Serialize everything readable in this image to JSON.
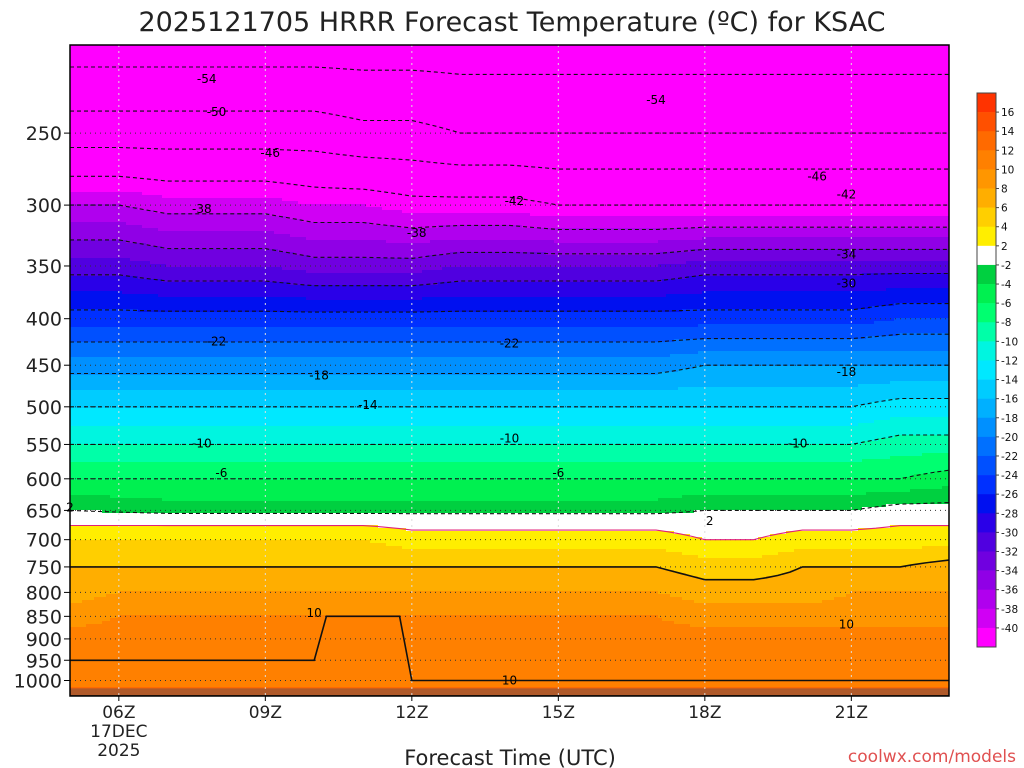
{
  "title": "2025121705 HRRR Forecast Temperature (ºC) for KSAC",
  "xlabel": "Forecast Time (UTC)",
  "watermark": "coolwx.com/models",
  "chart_data": {
    "type": "heatmap",
    "title": "2025121705 HRRR Forecast Temperature (ºC) for KSAC",
    "xlabel": "Forecast Time (UTC)",
    "ylabel": "",
    "y_scale": "log (pressure, hPa)",
    "y_range": [
      1040,
      200
    ],
    "x_range_hours_utc": [
      5,
      23
    ],
    "x_ticks": [
      {
        "label": "06Z",
        "sub1": "17DEC",
        "sub2": "2025",
        "hour": 6
      },
      {
        "label": "09Z",
        "hour": 9
      },
      {
        "label": "12Z",
        "hour": 12
      },
      {
        "label": "15Z",
        "hour": 15
      },
      {
        "label": "18Z",
        "hour": 18
      },
      {
        "label": "21Z",
        "hour": 21
      }
    ],
    "y_ticks": [
      250,
      300,
      350,
      400,
      450,
      500,
      550,
      600,
      650,
      700,
      750,
      800,
      850,
      900,
      950,
      1000
    ],
    "colorbar": {
      "labels": [
        "16",
        "14",
        "12",
        "10",
        "8",
        "6",
        "4",
        "2",
        "-2",
        "-4",
        "-6",
        "-8",
        "-10",
        "-12",
        "-14",
        "-16",
        "-18",
        "-20",
        "-22",
        "-24",
        "-26",
        "-28",
        "-30",
        "-32",
        "-34",
        "-36",
        "-38",
        "-40"
      ],
      "colors": [
        "#ff3300",
        "#ff5000",
        "#ff6a00",
        "#ff8000",
        "#ff9600",
        "#ffae00",
        "#ffcf00",
        "#ffee00",
        "#ffffff",
        "#00d040",
        "#00f050",
        "#00ff70",
        "#00ffa8",
        "#00f5e0",
        "#00e8ff",
        "#00ccff",
        "#00b0ff",
        "#0090ff",
        "#0070ff",
        "#0050ff",
        "#0030ff",
        "#0010f0",
        "#2a00e8",
        "#5000e0",
        "#7000e0",
        "#9000e6",
        "#b000ee",
        "#d000f4",
        "#ff00ff"
      ]
    },
    "levels": [
      {
        "p": 1040,
        "t": [
          14,
          14,
          14,
          14,
          14,
          14,
          14,
          14,
          14,
          14,
          14,
          14,
          14,
          14,
          14,
          14,
          14,
          14,
          14
        ]
      },
      {
        "p": 1000,
        "t": [
          11,
          11,
          11,
          11,
          11,
          11,
          11,
          10,
          10,
          10,
          10,
          10,
          10,
          10,
          10,
          10,
          10,
          10,
          10
        ]
      },
      {
        "p": 950,
        "t": [
          10,
          10,
          10,
          10,
          10,
          10,
          11,
          11,
          11,
          11,
          11,
          11,
          11,
          11,
          11,
          11,
          11,
          11,
          11
        ]
      },
      {
        "p": 900,
        "t": [
          11,
          11,
          10,
          10,
          10,
          11,
          11,
          11,
          11,
          11,
          11,
          11,
          11,
          11,
          11,
          11,
          11,
          11,
          11
        ]
      },
      {
        "p": 850,
        "t": [
          9,
          10,
          10,
          10,
          10,
          10,
          10,
          10,
          10,
          10,
          10,
          10,
          10,
          9,
          9,
          9,
          9,
          9,
          9
        ]
      },
      {
        "p": 800,
        "t": [
          7,
          8,
          8,
          8,
          8,
          8,
          8,
          8,
          8,
          8,
          8,
          8,
          8,
          7,
          7,
          7,
          8,
          8,
          8
        ]
      },
      {
        "p": 750,
        "t": [
          6,
          6,
          6,
          6,
          6,
          6,
          6,
          6,
          6,
          6,
          6,
          6,
          6,
          5,
          5,
          6,
          6,
          6,
          7
        ]
      },
      {
        "p": 700,
        "t": [
          4,
          4,
          4,
          4,
          4,
          4,
          4,
          3,
          3,
          3,
          3,
          3,
          3,
          2,
          2,
          3,
          3,
          3,
          3
        ]
      },
      {
        "p": 675,
        "t": [
          2,
          2,
          2,
          2,
          2,
          2,
          2,
          1.5,
          1.5,
          1.5,
          1.5,
          1.5,
          1.5,
          1,
          1,
          1.5,
          1.5,
          2,
          2
        ]
      },
      {
        "p": 650,
        "t": [
          -2,
          -2.5,
          -3,
          -3,
          -3,
          -3,
          -3,
          -3,
          -3,
          -3,
          -3,
          -3,
          -3,
          -2,
          -2,
          -2,
          -2,
          -1,
          -1
        ]
      },
      {
        "p": 600,
        "t": [
          -6,
          -6,
          -6,
          -6,
          -6,
          -6,
          -6,
          -6,
          -6,
          -6,
          -6,
          -6,
          -6,
          -6,
          -6,
          -6,
          -6,
          -6,
          -5
        ]
      },
      {
        "p": 550,
        "t": [
          -10,
          -10,
          -10,
          -10,
          -10,
          -10,
          -10,
          -10,
          -10,
          -10,
          -10,
          -10,
          -10,
          -10,
          -10,
          -10,
          -10,
          -9,
          -9
        ]
      },
      {
        "p": 500,
        "t": [
          -14,
          -14,
          -14,
          -14,
          -14,
          -14,
          -14,
          -14,
          -14,
          -14,
          -14,
          -14,
          -14,
          -14,
          -14,
          -14,
          -14,
          -13,
          -13
        ]
      },
      {
        "p": 450,
        "t": [
          -19,
          -19,
          -19,
          -19,
          -19,
          -19,
          -19,
          -19,
          -19,
          -19,
          -19,
          -19,
          -19,
          -18,
          -18,
          -18,
          -18,
          -18,
          -18
        ]
      },
      {
        "p": 400,
        "t": [
          -25,
          -25,
          -25,
          -25,
          -25,
          -25,
          -25,
          -25,
          -25,
          -25,
          -25,
          -25,
          -25,
          -25,
          -25,
          -25,
          -25,
          -24,
          -24
        ]
      },
      {
        "p": 350,
        "t": [
          -31,
          -31,
          -32,
          -32,
          -32,
          -33,
          -33,
          -33,
          -32,
          -32,
          -32,
          -32,
          -32,
          -31,
          -31,
          -31,
          -31,
          -31,
          -31
        ]
      },
      {
        "p": 300,
        "t": [
          -38,
          -38,
          -39,
          -39,
          -39,
          -40,
          -40,
          -41,
          -41,
          -41,
          -42,
          -42,
          -42,
          -42,
          -42,
          -42,
          -42,
          -42,
          -42
        ]
      },
      {
        "p": 250,
        "t": [
          -48,
          -48,
          -48,
          -48,
          -48,
          -48,
          -49,
          -49,
          -50,
          -50,
          -50,
          -50,
          -50,
          -50,
          -50,
          -50,
          -50,
          -50,
          -50
        ]
      },
      {
        "p": 200,
        "t": [
          -56,
          -56,
          -56,
          -56,
          -56,
          -56,
          -56,
          -56,
          -56,
          -56,
          -56,
          -56,
          -56,
          -56,
          -56,
          -56,
          -56,
          -56,
          -56
        ]
      }
    ],
    "contour_labels": [
      {
        "text": "-54",
        "hour": 7.8,
        "p": 218
      },
      {
        "text": "-50",
        "hour": 8.0,
        "p": 237
      },
      {
        "text": "-46",
        "hour": 9.1,
        "p": 263
      },
      {
        "text": "-38",
        "hour": 7.7,
        "p": 303
      },
      {
        "text": "-42",
        "hour": 14.1,
        "p": 297
      },
      {
        "text": "-38",
        "hour": 12.1,
        "p": 322
      },
      {
        "text": "-54",
        "hour": 17.0,
        "p": 230
      },
      {
        "text": "-46",
        "hour": 20.3,
        "p": 279
      },
      {
        "text": "-42",
        "hour": 20.9,
        "p": 292
      },
      {
        "text": "-34",
        "hour": 20.9,
        "p": 340
      },
      {
        "text": "-30",
        "hour": 20.9,
        "p": 366
      },
      {
        "text": "-22",
        "hour": 8.0,
        "p": 424
      },
      {
        "text": "-22",
        "hour": 14.0,
        "p": 426
      },
      {
        "text": "-18",
        "hour": 10.1,
        "p": 462
      },
      {
        "text": "-18",
        "hour": 20.9,
        "p": 458
      },
      {
        "text": "-14",
        "hour": 11.1,
        "p": 498
      },
      {
        "text": "-10",
        "hour": 7.7,
        "p": 549
      },
      {
        "text": "-10",
        "hour": 14.0,
        "p": 542
      },
      {
        "text": "-10",
        "hour": 19.9,
        "p": 549
      },
      {
        "text": "-6",
        "hour": 8.1,
        "p": 591
      },
      {
        "text": "-6",
        "hour": 15.0,
        "p": 591
      },
      {
        "text": "2",
        "hour": 5.0,
        "p": 645
      },
      {
        "text": "2",
        "hour": 18.1,
        "p": 668
      },
      {
        "text": "10",
        "hour": 10.0,
        "p": 843
      },
      {
        "text": "10",
        "hour": 20.9,
        "p": 868
      },
      {
        "text": "10",
        "hour": 14.0,
        "p": 1000
      }
    ]
  }
}
